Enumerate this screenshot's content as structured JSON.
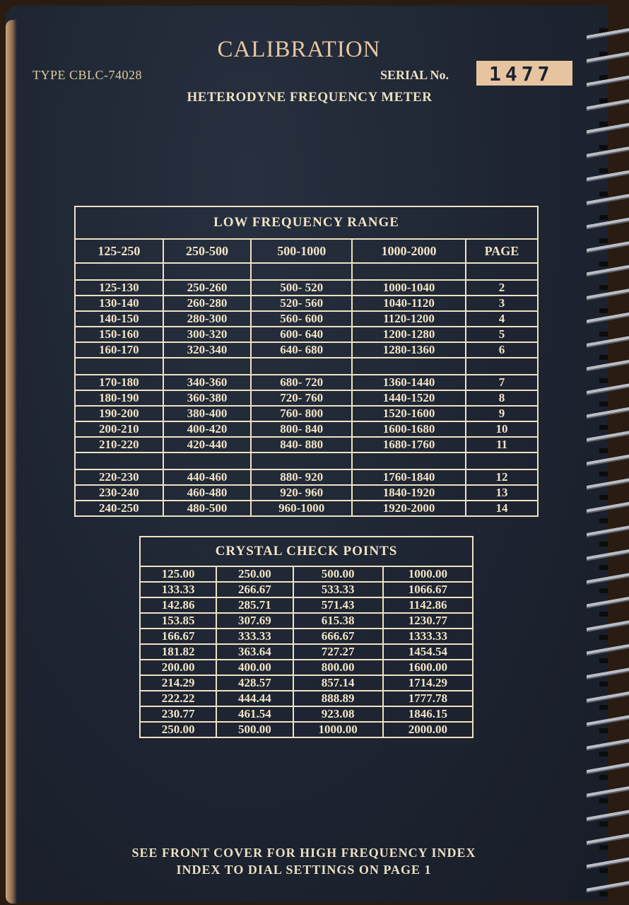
{
  "header": {
    "title": "CALIBRATION",
    "type": "TYPE CBLC-74028",
    "serial_label": "SERIAL No.",
    "serial_number": "1477",
    "subtitle": "HETERODYNE FREQUENCY METER"
  },
  "low_frequency_range": {
    "title": "LOW FREQUENCY RANGE",
    "columns": [
      "125-250",
      "250-500",
      "500-1000",
      "1000-2000",
      "PAGE"
    ],
    "groups": [
      [
        [
          "125-130",
          "250-260",
          "500- 520",
          "1000-1040",
          "2"
        ],
        [
          "130-140",
          "260-280",
          "520- 560",
          "1040-1120",
          "3"
        ],
        [
          "140-150",
          "280-300",
          "560- 600",
          "1120-1200",
          "4"
        ],
        [
          "150-160",
          "300-320",
          "600- 640",
          "1200-1280",
          "5"
        ],
        [
          "160-170",
          "320-340",
          "640- 680",
          "1280-1360",
          "6"
        ]
      ],
      [
        [
          "170-180",
          "340-360",
          "680- 720",
          "1360-1440",
          "7"
        ],
        [
          "180-190",
          "360-380",
          "720- 760",
          "1440-1520",
          "8"
        ],
        [
          "190-200",
          "380-400",
          "760- 800",
          "1520-1600",
          "9"
        ],
        [
          "200-210",
          "400-420",
          "800- 840",
          "1600-1680",
          "10"
        ],
        [
          "210-220",
          "420-440",
          "840- 880",
          "1680-1760",
          "11"
        ]
      ],
      [
        [
          "220-230",
          "440-460",
          "880- 920",
          "1760-1840",
          "12"
        ],
        [
          "230-240",
          "460-480",
          "920- 960",
          "1840-1920",
          "13"
        ],
        [
          "240-250",
          "480-500",
          "960-1000",
          "1920-2000",
          "14"
        ]
      ]
    ]
  },
  "crystal_check_points": {
    "title": "CRYSTAL CHECK POINTS",
    "rows": [
      [
        "125.00",
        "250.00",
        "500.00",
        "1000.00"
      ],
      [
        "133.33",
        "266.67",
        "533.33",
        "1066.67"
      ],
      [
        "142.86",
        "285.71",
        "571.43",
        "1142.86"
      ],
      [
        "153.85",
        "307.69",
        "615.38",
        "1230.77"
      ],
      [
        "166.67",
        "333.33",
        "666.67",
        "1333.33"
      ],
      [
        "181.82",
        "363.64",
        "727.27",
        "1454.54"
      ],
      [
        "200.00",
        "400.00",
        "800.00",
        "1600.00"
      ],
      [
        "214.29",
        "428.57",
        "857.14",
        "1714.29"
      ],
      [
        "222.22",
        "444.44",
        "888.89",
        "1777.78"
      ],
      [
        "230.77",
        "461.54",
        "923.08",
        "1846.15"
      ],
      [
        "250.00",
        "500.00",
        "1000.00",
        "2000.00"
      ]
    ]
  },
  "footer": {
    "line1": "SEE FRONT COVER FOR HIGH FREQUENCY INDEX",
    "line2": "INDEX TO DIAL SETTINGS ON PAGE 1"
  },
  "colors": {
    "cover": "#1e2431",
    "ink": "#f1e4c6",
    "serial_label_bg": "#e7c4a0"
  }
}
